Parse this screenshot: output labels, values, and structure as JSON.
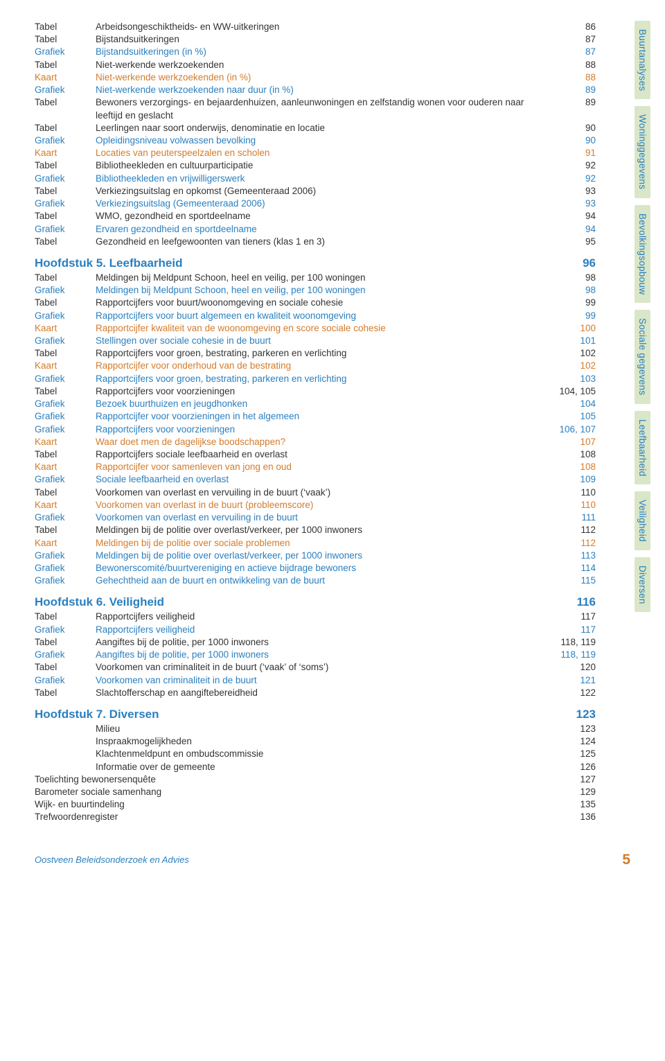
{
  "colors": {
    "grafiek": "#2a7fbf",
    "kaart": "#d47b2a",
    "tabel": "#333333",
    "tab_bg": "#d9e6c8",
    "heading": "#2a7fbf",
    "footer_text": "#2a7fbf",
    "footer_page": "#d47b2a"
  },
  "typography": {
    "body_fontsize": 13.5,
    "heading_fontsize": 17,
    "footer_fontsize": 13,
    "footer_page_fontsize": 21,
    "font_family": "Verdana"
  },
  "tabs": [
    "Buurtanalyses",
    "Woninggegevens",
    "Bevolkingsopbouw",
    "Sociale gegevens",
    "Leefbaarheid",
    "Veiligheid",
    "Diversen"
  ],
  "sections": [
    {
      "rows": [
        {
          "type": "Tabel",
          "desc": "Arbeidsongeschiktheids- en WW-uitkeringen",
          "page": "86"
        },
        {
          "type": "Tabel",
          "desc": "Bijstandsuitkeringen",
          "page": "87"
        },
        {
          "type": "Grafiek",
          "desc": "Bijstandsuitkeringen (in %)",
          "page": "87"
        },
        {
          "type": "Tabel",
          "desc": "Niet-werkende werkzoekenden",
          "page": "88"
        },
        {
          "type": "Kaart",
          "desc": "Niet-werkende werkzoekenden (in %)",
          "page": "88"
        },
        {
          "type": "Grafiek",
          "desc": "Niet-werkende werkzoekenden naar duur (in %)",
          "page": "89"
        },
        {
          "type": "Tabel",
          "desc": "Bewoners verzorgings- en bejaardenhuizen, aanleunwoningen en zelfstandig wonen voor ouderen naar leeftijd en geslacht",
          "page": "89"
        },
        {
          "type": "Tabel",
          "desc": "Leerlingen naar soort onderwijs, denominatie en locatie",
          "page": "90"
        },
        {
          "type": "Grafiek",
          "desc": "Opleidingsniveau volwassen bevolking",
          "page": "90"
        },
        {
          "type": "Kaart",
          "desc": "Locaties van peuterspeelzalen en scholen",
          "page": "91"
        },
        {
          "type": "Tabel",
          "desc": "Bibliotheekleden en cultuurparticipatie",
          "page": "92"
        },
        {
          "type": "Grafiek",
          "desc": "Bibliotheekleden en vrijwilligerswerk",
          "page": "92"
        },
        {
          "type": "Tabel",
          "desc": "Verkiezingsuitslag en opkomst (Gemeenteraad 2006)",
          "page": "93"
        },
        {
          "type": "Grafiek",
          "desc": "Verkiezingsuitslag (Gemeenteraad 2006)",
          "page": "93"
        },
        {
          "type": "Tabel",
          "desc": "WMO, gezondheid en sportdeelname",
          "page": "94"
        },
        {
          "type": "Grafiek",
          "desc": "Ervaren gezondheid en sportdeelname",
          "page": "94"
        },
        {
          "type": "Tabel",
          "desc": "Gezondheid en leefgewoonten van tieners (klas 1 en 3)",
          "page": "95"
        }
      ]
    },
    {
      "heading": "Hoofdstuk 5. Leefbaarheid",
      "heading_page": "96",
      "rows": [
        {
          "type": "Tabel",
          "desc": "Meldingen bij Meldpunt Schoon, heel en veilig, per 100 woningen",
          "page": "98"
        },
        {
          "type": "Grafiek",
          "desc": "Meldingen bij Meldpunt Schoon, heel en veilig, per 100 woningen",
          "page": "98"
        },
        {
          "type": "Tabel",
          "desc": "Rapportcijfers voor buurt/woonomgeving en sociale cohesie",
          "page": "99"
        },
        {
          "type": "Grafiek",
          "desc": "Rapportcijfers voor buurt algemeen en kwaliteit woonomgeving",
          "page": "99"
        },
        {
          "type": "Kaart",
          "desc": "Rapportcijfer kwaliteit van de woonomgeving en score sociale cohesie",
          "page": "100"
        },
        {
          "type": "Grafiek",
          "desc": "Stellingen over sociale cohesie in de buurt",
          "page": "101"
        },
        {
          "type": "Tabel",
          "desc": "Rapportcijfers voor groen, bestrating, parkeren en verlichting",
          "page": "102"
        },
        {
          "type": "Kaart",
          "desc": "Rapportcijfer voor onderhoud van de bestrating",
          "page": "102"
        },
        {
          "type": "Grafiek",
          "desc": "Rapportcijfers voor groen, bestrating, parkeren en verlichting",
          "page": "103"
        },
        {
          "type": "Tabel",
          "desc": "Rapportcijfers voor voorzieningen",
          "page": "104, 105"
        },
        {
          "type": "Grafiek",
          "desc": "Bezoek buurthuizen en jeugdhonken",
          "page": "104"
        },
        {
          "type": "Grafiek",
          "desc": "Rapportcijfer voor voorzieningen in het algemeen",
          "page": "105"
        },
        {
          "type": "Grafiek",
          "desc": "Rapportcijfers voor voorzieningen",
          "page": "106, 107"
        },
        {
          "type": "Kaart",
          "desc": "Waar doet men de dagelijkse boodschappen?",
          "page": "107"
        },
        {
          "type": "Tabel",
          "desc": "Rapportcijfers sociale leefbaarheid en overlast",
          "page": "108"
        },
        {
          "type": "Kaart",
          "desc": "Rapportcijfer voor samenleven van jong en oud",
          "page": "108"
        },
        {
          "type": "Grafiek",
          "desc": "Sociale leefbaarheid en overlast",
          "page": "109"
        },
        {
          "type": "Tabel",
          "desc": "Voorkomen van overlast en vervuiling in de buurt (‘vaak’)",
          "page": "110"
        },
        {
          "type": "Kaart",
          "desc": "Voorkomen van overlast in de buurt (probleemscore)",
          "page": "110"
        },
        {
          "type": "Grafiek",
          "desc": "Voorkomen van overlast en vervuiling in de buurt",
          "page": "111"
        },
        {
          "type": "Tabel",
          "desc": "Meldingen bij de politie over overlast/verkeer, per 1000 inwoners",
          "page": "112"
        },
        {
          "type": "Kaart",
          "desc": "Meldingen bij de politie over sociale problemen",
          "page": "112"
        },
        {
          "type": "Grafiek",
          "desc": "Meldingen bij de politie over overlast/verkeer, per 1000 inwoners",
          "page": "113"
        },
        {
          "type": "Grafiek",
          "desc": "Bewonerscomité/buurtvereniging en actieve bijdrage bewoners",
          "page": "114"
        },
        {
          "type": "Grafiek",
          "desc": "Gehechtheid aan de buurt en ontwikkeling van de buurt",
          "page": "115"
        }
      ]
    },
    {
      "heading": "Hoofdstuk 6. Veiligheid",
      "heading_page": "116",
      "rows": [
        {
          "type": "Tabel",
          "desc": "Rapportcijfers veiligheid",
          "page": "117"
        },
        {
          "type": "Grafiek",
          "desc": "Rapportcijfers veiligheid",
          "page": "117"
        },
        {
          "type": "Tabel",
          "desc": "Aangiftes bij de politie, per 1000 inwoners",
          "page": "118, 119"
        },
        {
          "type": "Grafiek",
          "desc": "Aangiftes bij de politie, per 1000 inwoners",
          "page": "118, 119"
        },
        {
          "type": "Tabel",
          "desc": "Voorkomen van criminaliteit in de buurt (‘vaak’ of ‘soms’)",
          "page": "120"
        },
        {
          "type": "Grafiek",
          "desc": "Voorkomen van criminaliteit in de buurt",
          "page": "121"
        },
        {
          "type": "Tabel",
          "desc": "Slachtofferschap en aangiftebereidheid",
          "page": "122"
        }
      ]
    },
    {
      "heading": "Hoofdstuk 7. Diversen",
      "heading_page": "123",
      "rows": [
        {
          "type": "",
          "desc": "Milieu",
          "page": "123",
          "indent": true
        },
        {
          "type": "",
          "desc": "Inspraakmogelijkheden",
          "page": "124",
          "indent": true
        },
        {
          "type": "",
          "desc": "Klachtenmeldpunt en ombudscommissie",
          "page": "125",
          "indent": true
        },
        {
          "type": "",
          "desc": "Informatie over de gemeente",
          "page": "126",
          "indent": true
        },
        {
          "type": "",
          "desc": "Toelichting bewonersenquête",
          "page": "127",
          "noindent": true
        },
        {
          "type": "",
          "desc": "Barometer sociale samenhang",
          "page": "129",
          "noindent": true
        },
        {
          "type": "",
          "desc": "Wijk- en buurtindeling",
          "page": "135",
          "noindent": true
        },
        {
          "type": "",
          "desc": "Trefwoordenregister",
          "page": "136",
          "noindent": true
        }
      ]
    }
  ],
  "footer": {
    "text": "Oostveen Beleidsonderzoek en Advies",
    "page": "5"
  }
}
